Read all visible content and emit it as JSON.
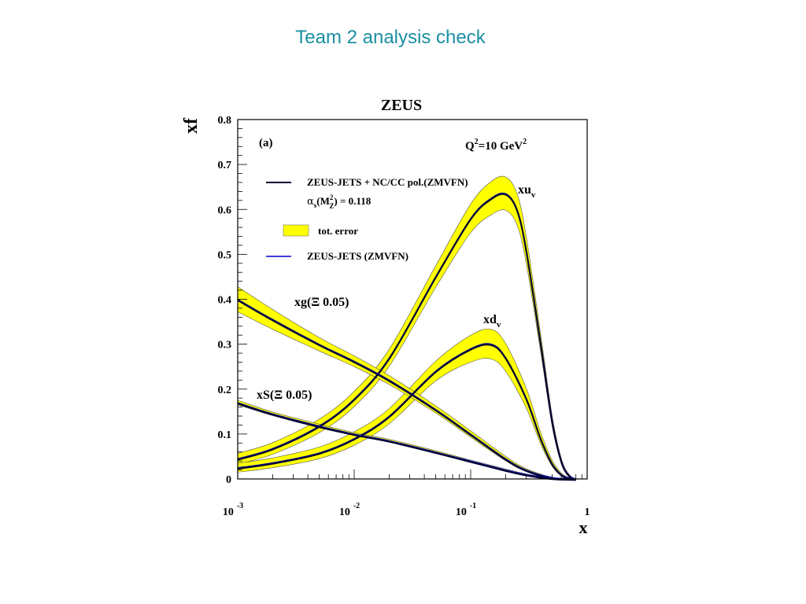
{
  "slide": {
    "title": "Team 2 analysis check"
  },
  "colors": {
    "band": "#ffff00",
    "central": "#000033",
    "zeus_jets": "#0000cc",
    "title": "#1b8fa3"
  },
  "chart_data": {
    "type": "line",
    "title": "ZEUS",
    "panel_label": "(a)",
    "scale_label": {
      "base": "Q",
      "sup1": "2",
      "mid": "=10 GeV",
      "sup2": "2"
    },
    "xlabel": "x",
    "ylabel": "xf",
    "xscale": "log",
    "xlim": [
      0.001,
      1
    ],
    "ylim": [
      0,
      0.8
    ],
    "yticks": [
      0,
      0.1,
      0.2,
      0.3,
      0.4,
      0.5,
      0.6,
      0.7,
      0.8
    ],
    "ytick_labels": [
      "0",
      "0.1",
      "0.2",
      "0.3",
      "0.4",
      "0.5",
      "0.6",
      "0.7",
      "0.8"
    ],
    "xticks": [
      0.001,
      0.01,
      0.1,
      1
    ],
    "xtick_labels": [
      {
        "base": "10",
        "exp": "-3"
      },
      {
        "base": "10",
        "exp": "-2"
      },
      {
        "base": "10",
        "exp": "-1"
      },
      {
        "base": "1",
        "exp": ""
      }
    ],
    "legend": {
      "placement": "top-left",
      "fit_label": "ZEUS-JETS + NC/CC pol.(ZMVFN)",
      "alphas_label": {
        "a": "α",
        "s": "s",
        "M": "(M",
        "Msup": "2",
        "Msub": "Z",
        "rest": ") = 0.118"
      },
      "band_label": "tot. error",
      "zeus_jets_label": "ZEUS-JETS (ZMVFN)"
    },
    "series": [
      {
        "key": "xuv",
        "label": {
          "main": "xu",
          "sub": "v"
        },
        "x": [
          0.001,
          0.002,
          0.005,
          0.01,
          0.02,
          0.05,
          0.1,
          0.15,
          0.2,
          0.25,
          0.3,
          0.4,
          0.5,
          0.6,
          0.7,
          0.8
        ],
        "y": [
          0.045,
          0.068,
          0.118,
          0.178,
          0.27,
          0.45,
          0.58,
          0.625,
          0.635,
          0.6,
          0.51,
          0.3,
          0.13,
          0.04,
          0.008,
          0.0
        ],
        "err": [
          0.012,
          0.013,
          0.015,
          0.017,
          0.019,
          0.024,
          0.032,
          0.037,
          0.037,
          0.035,
          0.03,
          0.02,
          0.012,
          0.006,
          0.002,
          0.0
        ]
      },
      {
        "key": "xdv",
        "label": {
          "main": "xd",
          "sub": "v"
        },
        "x": [
          0.001,
          0.002,
          0.005,
          0.01,
          0.02,
          0.05,
          0.1,
          0.15,
          0.2,
          0.3,
          0.4,
          0.5,
          0.6,
          0.7,
          0.8
        ],
        "y": [
          0.025,
          0.036,
          0.058,
          0.09,
          0.14,
          0.24,
          0.29,
          0.3,
          0.27,
          0.18,
          0.09,
          0.035,
          0.01,
          0.002,
          0.0
        ],
        "err": [
          0.01,
          0.011,
          0.013,
          0.015,
          0.017,
          0.022,
          0.03,
          0.033,
          0.031,
          0.022,
          0.013,
          0.007,
          0.003,
          0.001,
          0.0
        ]
      },
      {
        "key": "xg",
        "label": {
          "main": "xg(Ξ 0.05)"
        },
        "x": [
          0.001,
          0.002,
          0.005,
          0.01,
          0.02,
          0.05,
          0.1,
          0.2,
          0.3,
          0.5,
          0.8
        ],
        "y": [
          0.4,
          0.355,
          0.3,
          0.262,
          0.22,
          0.155,
          0.1,
          0.045,
          0.02,
          0.003,
          0.0
        ],
        "err": [
          0.028,
          0.022,
          0.015,
          0.012,
          0.01,
          0.008,
          0.007,
          0.005,
          0.003,
          0.001,
          0.0
        ]
      },
      {
        "key": "xS",
        "label": {
          "main": "xS(Ξ 0.05)"
        },
        "x": [
          0.001,
          0.002,
          0.005,
          0.01,
          0.02,
          0.05,
          0.1,
          0.2,
          0.3,
          0.5,
          0.8
        ],
        "y": [
          0.17,
          0.145,
          0.118,
          0.1,
          0.085,
          0.06,
          0.04,
          0.02,
          0.01,
          0.002,
          0.0
        ],
        "err": [
          0.005,
          0.004,
          0.004,
          0.003,
          0.003,
          0.003,
          0.002,
          0.002,
          0.001,
          0.0,
          0.0
        ]
      }
    ]
  }
}
